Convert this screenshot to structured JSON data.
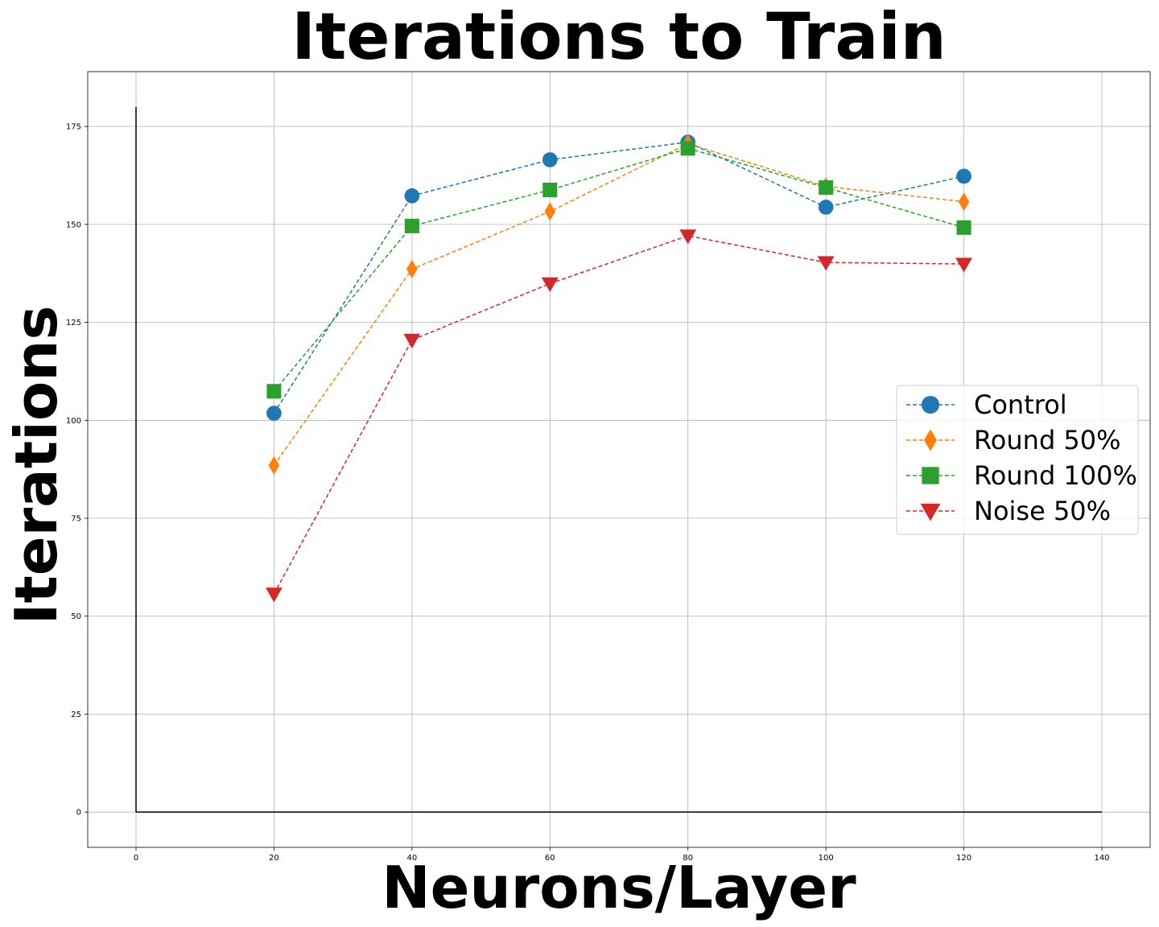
{
  "chart_data": {
    "type": "line",
    "title": "Iterations to Train",
    "xlabel": "Neurons/Layer",
    "ylabel": "Iterations",
    "xlim": [
      -7,
      147
    ],
    "ylim": [
      -9,
      189
    ],
    "x_ticks": [
      0,
      20,
      40,
      60,
      80,
      100,
      120,
      140
    ],
    "y_ticks": [
      0,
      25,
      50,
      75,
      100,
      125,
      150,
      175
    ],
    "grid": true,
    "legend_position": "center-right",
    "extra_lines": [
      {
        "x": [
          0,
          0
        ],
        "y": [
          0,
          180
        ],
        "color": "#000000"
      },
      {
        "x": [
          0,
          140
        ],
        "y": [
          0,
          0
        ],
        "color": "#000000"
      }
    ],
    "x": [
      20,
      40,
      60,
      80,
      100,
      120
    ],
    "series": [
      {
        "name": "Control",
        "marker": "circle",
        "color": "#1f77b4",
        "values": [
          101.8,
          157.3,
          166.5,
          171.0,
          154.4,
          162.3
        ]
      },
      {
        "name": "Round 50%",
        "marker": "thin-diamond",
        "color": "#ff7f0e",
        "values": [
          88.5,
          138.6,
          153.3,
          170.6,
          159.7,
          155.8
        ]
      },
      {
        "name": "Round 100%",
        "marker": "square",
        "color": "#2ca02c",
        "values": [
          107.4,
          149.6,
          158.8,
          169.4,
          159.4,
          149.2
        ]
      },
      {
        "name": "Noise 50%",
        "marker": "triangle-down",
        "color": "#d62728",
        "values": [
          55.7,
          120.5,
          134.9,
          147.1,
          140.3,
          139.9
        ]
      }
    ]
  }
}
